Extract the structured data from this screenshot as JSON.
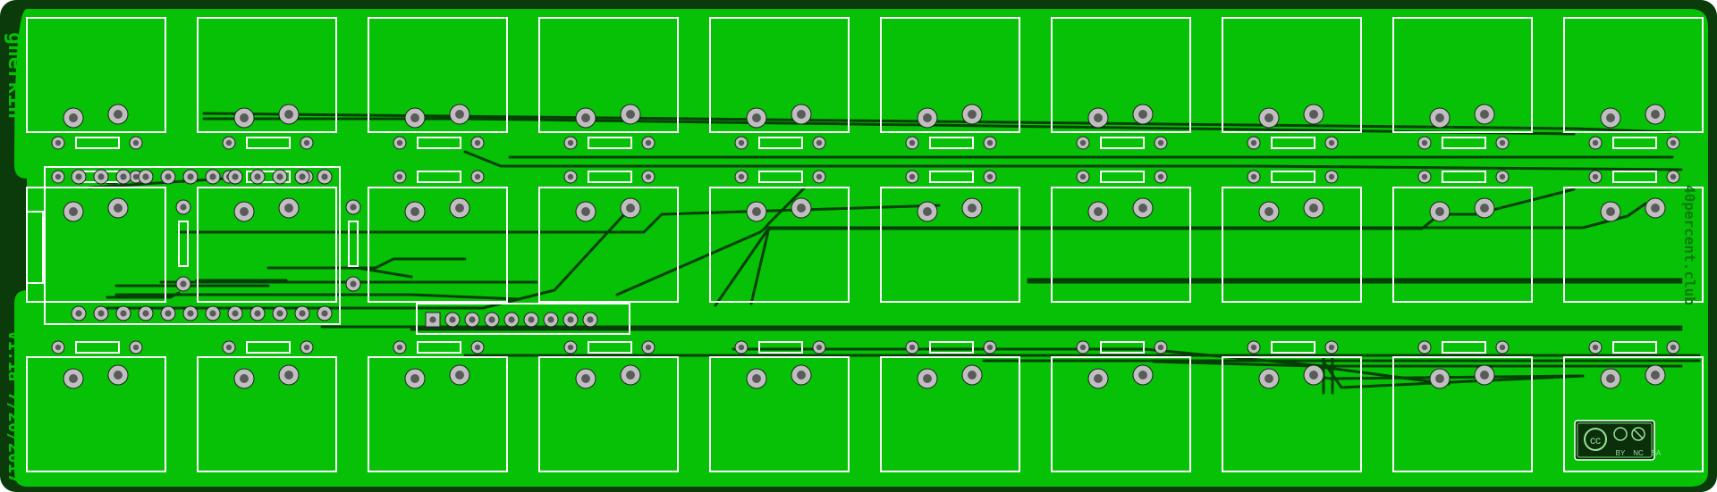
{
  "board": {
    "name": "gherkin",
    "version": "V1.1a 7/20/2017",
    "url": "40percent.club",
    "license": {
      "icon": "cc-by-nc-sa-icon",
      "items": [
        "BY",
        "NC",
        "SA"
      ]
    },
    "colors": {
      "outer": "#0b3a0b",
      "copper": "#06c106",
      "trace": "#053f05",
      "silk": "#ffffff",
      "pad": "#bfbfbf",
      "drill": "#5a5a5a"
    }
  },
  "matrix": {
    "columns": 10,
    "rows": 3
  }
}
